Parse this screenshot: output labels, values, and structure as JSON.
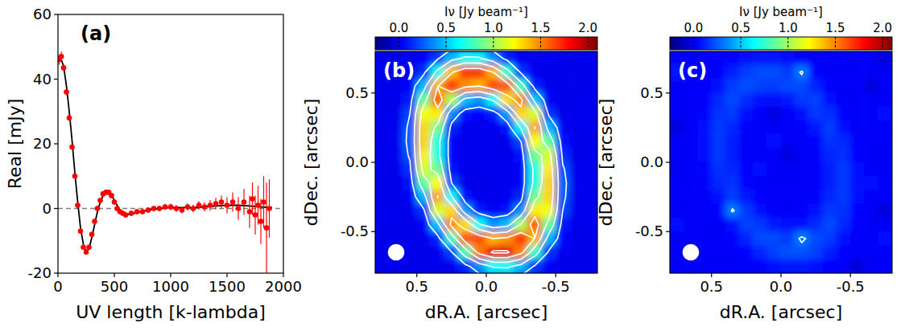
{
  "chart_data": [
    {
      "type": "line",
      "title": "(a)",
      "x_label": "UV length [k-lambda]",
      "y_label": "Real [mJy]",
      "xlim": [
        0,
        2000
      ],
      "ylim": [
        -20,
        60
      ],
      "xticks": [
        0,
        500,
        1000,
        1500,
        2000
      ],
      "yticks": [
        -20,
        0,
        20,
        40,
        60
      ],
      "series": [
        {
          "type": "line",
          "color": "#808080",
          "line_style": "dashed",
          "x": [
            0,
            2000
          ],
          "values": [
            0,
            0
          ]
        },
        {
          "type": "line",
          "color": "#000000",
          "line_style": "solid",
          "x": [
            0,
            25,
            50,
            75,
            100,
            125,
            150,
            175,
            200,
            225,
            250,
            275,
            300,
            325,
            350,
            375,
            400,
            425,
            450,
            475,
            500,
            525,
            550,
            600,
            650,
            700,
            800,
            900,
            1000,
            1100,
            1200,
            1300,
            1400,
            1500,
            1600,
            1700,
            1800,
            1900
          ],
          "values": [
            47,
            46.5,
            44,
            38,
            30,
            21,
            11,
            2,
            -6,
            -11,
            -13.5,
            -12.5,
            -9,
            -5,
            -1,
            2,
            4,
            5,
            5,
            4.2,
            2.5,
            1,
            -0.5,
            -1.8,
            -1.8,
            -1.2,
            -0.5,
            0,
            0.3,
            0.3,
            0.3,
            0.5,
            0.8,
            1,
            1,
            0.8,
            0.5,
            0.3
          ]
        },
        {
          "type": "scatter",
          "color": "#ff0000",
          "marker": "circle",
          "x": [
            10,
            30,
            50,
            75,
            100,
            125,
            150,
            175,
            200,
            225,
            250,
            275,
            300,
            325,
            350,
            375,
            400,
            425,
            450,
            475,
            500,
            525,
            550,
            575,
            600,
            650,
            700,
            750,
            800,
            850,
            900,
            950,
            1000,
            1050,
            1100,
            1150,
            1200,
            1250,
            1300,
            1350,
            1400,
            1450,
            1500,
            1550,
            1600,
            1650,
            1700,
            1725,
            1750,
            1775,
            1800,
            1825,
            1850,
            1875
          ],
          "values": [
            46,
            47,
            43.5,
            36,
            28,
            19,
            10,
            1,
            -7,
            -12,
            -13.5,
            -12,
            -8,
            -4,
            0,
            2.5,
            4.5,
            5,
            5,
            4,
            2,
            0,
            -1,
            -1.5,
            -2,
            -1.5,
            -1,
            -1,
            -0.5,
            0,
            0,
            0.5,
            0.5,
            0,
            -0.5,
            0.5,
            0,
            1,
            0.5,
            1,
            1.5,
            2,
            1,
            2,
            0,
            2,
            -1,
            3,
            -2,
            1,
            -4,
            2,
            -6,
            0
          ],
          "errors": [
            1.5,
            1.5,
            1,
            1,
            0.8,
            0.8,
            0.8,
            0.8,
            0.8,
            0.8,
            0.8,
            0.8,
            0.8,
            0.8,
            0.8,
            0.8,
            0.8,
            0.8,
            0.8,
            0.8,
            0.8,
            0.8,
            0.8,
            0.8,
            0.8,
            0.8,
            0.8,
            0.8,
            0.8,
            0.8,
            0.8,
            0.9,
            1,
            1,
            1,
            1.1,
            1.2,
            1.3,
            1.4,
            1.6,
            1.8,
            2,
            2.5,
            3,
            3.5,
            4,
            5,
            5,
            6,
            6,
            7,
            8,
            14,
            9
          ]
        }
      ]
    },
    {
      "type": "heatmap",
      "title": "(b)",
      "x_label": "dR.A. [arcsec]",
      "y_label": "dDec. [arcsec]",
      "color": "jet",
      "xlim": [
        0.8,
        -0.8
      ],
      "ylim": [
        -0.8,
        0.8
      ],
      "xticks": [
        0.5,
        {
          "value": 0,
          "label": "0.0"
        },
        -0.5
      ],
      "yticks": [
        -0.5,
        {
          "value": 0,
          "label": "0.0"
        },
        0.5
      ],
      "x": [
        0.85,
        0.75,
        0.65,
        0.55,
        0.45,
        0.35,
        0.25,
        0.15,
        0.05,
        -0.05,
        -0.15,
        -0.25,
        -0.35,
        -0.45,
        -0.55,
        -0.65,
        -0.75,
        -0.85
      ],
      "y": [
        0.85,
        0.75,
        0.65,
        0.55,
        0.45,
        0.35,
        0.25,
        0.15,
        0.05,
        -0.05,
        -0.15,
        -0.25,
        -0.35,
        -0.45,
        -0.55,
        -0.65,
        -0.75,
        -0.85
      ],
      "cells": [
        [
          0,
          0,
          0,
          0,
          0,
          0.02,
          0.07,
          0.11,
          0.09,
          0.04,
          0,
          0,
          0,
          0,
          0,
          0,
          0,
          0
        ],
        [
          0,
          0,
          0,
          0,
          0.03,
          0.17,
          0.47,
          0.67,
          0.64,
          0.38,
          0.12,
          0.01,
          0,
          0,
          0,
          0,
          0,
          0
        ],
        [
          0,
          0,
          0,
          0.01,
          0.15,
          0.69,
          1.37,
          1.68,
          1.68,
          1.4,
          0.73,
          0.16,
          0.01,
          0,
          0,
          0,
          0,
          0
        ],
        [
          0,
          0,
          0,
          0.05,
          0.46,
          1.39,
          1.69,
          1.47,
          1.4,
          1.63,
          1.6,
          0.77,
          0.11,
          0,
          0,
          0,
          0,
          0
        ],
        [
          0,
          0,
          0,
          0.1,
          0.87,
          1.59,
          1.02,
          0.48,
          0.38,
          0.63,
          1.3,
          1.49,
          0.5,
          0.03,
          0,
          0,
          0,
          0
        ],
        [
          0,
          0,
          0,
          0.2,
          1.19,
          1.26,
          0.37,
          0.07,
          0.03,
          0.09,
          0.4,
          1.31,
          1.13,
          0.16,
          0,
          0,
          0,
          0
        ],
        [
          0,
          0,
          0.01,
          0.25,
          1.31,
          0.9,
          0.12,
          0.01,
          0,
          0.01,
          0.06,
          0.62,
          1.42,
          0.46,
          0.02,
          0,
          0,
          0
        ],
        [
          0,
          0,
          0.01,
          0.27,
          1.32,
          0.7,
          0.04,
          0,
          0,
          0,
          0,
          0.2,
          1.21,
          0.85,
          0.07,
          0,
          0,
          0
        ],
        [
          0,
          0,
          0,
          0.23,
          1.26,
          0.69,
          0.04,
          0,
          0,
          0,
          0,
          0.07,
          0.88,
          1.13,
          0.15,
          0,
          0,
          0
        ],
        [
          0,
          0,
          0,
          0.15,
          1.13,
          0.88,
          0.07,
          0,
          0,
          0,
          0,
          0.04,
          0.69,
          1.26,
          0.23,
          0,
          0,
          0
        ],
        [
          0,
          0,
          0,
          0.07,
          0.85,
          1.21,
          0.2,
          0,
          0,
          0,
          0,
          0.04,
          0.7,
          1.32,
          0.27,
          0.01,
          0,
          0
        ],
        [
          0,
          0,
          0,
          0.02,
          0.46,
          1.42,
          0.62,
          0.06,
          0.01,
          0,
          0.01,
          0.12,
          0.9,
          1.31,
          0.25,
          0.01,
          0,
          0
        ],
        [
          0,
          0,
          0,
          0,
          0.16,
          1.13,
          1.31,
          0.4,
          0.09,
          0.03,
          0.07,
          0.37,
          1.26,
          1.19,
          0.2,
          0,
          0,
          0
        ],
        [
          0,
          0,
          0,
          0,
          0.03,
          0.5,
          1.49,
          1.3,
          0.63,
          0.38,
          0.48,
          1.02,
          1.59,
          0.87,
          0.1,
          0,
          0,
          0
        ],
        [
          0,
          0,
          0,
          0,
          0,
          0.11,
          0.77,
          1.6,
          1.63,
          1.4,
          1.47,
          1.69,
          1.39,
          0.46,
          0.05,
          0,
          0,
          0
        ],
        [
          0,
          0,
          0,
          0,
          0,
          0.01,
          0.18,
          0.8,
          1.52,
          1.85,
          1.85,
          1.5,
          0.75,
          0.16,
          0.01,
          0,
          0,
          0
        ],
        [
          0,
          0,
          0,
          0,
          0,
          0,
          0.01,
          0.12,
          0.38,
          0.64,
          0.67,
          0.47,
          0.17,
          0.03,
          0,
          0,
          0,
          0
        ],
        [
          0,
          0,
          0,
          0,
          0,
          0,
          0,
          0,
          0.04,
          0.09,
          0.11,
          0.07,
          0.02,
          0,
          0,
          0,
          0,
          0
        ]
      ],
      "contour_levels": [
        0.2,
        0.6,
        1.0,
        1.4,
        1.8
      ],
      "beam": 0.12,
      "colorbar": {
        "label": "Iν [Jy beam⁻¹]",
        "range": [
          -0.25,
          2.1
        ],
        "ticks": [
          {
            "value": 0,
            "label": "0.0"
          },
          0.5,
          {
            "value": 1,
            "label": "1.0"
          },
          1.5,
          {
            "value": 2,
            "label": "2.0"
          }
        ]
      }
    },
    {
      "type": "heatmap",
      "title": "(c)",
      "x_label": "dR.A. [arcsec]",
      "y_label": "dDec. [arcsec]",
      "color": "jet",
      "xlim": [
        0.8,
        -0.8
      ],
      "ylim": [
        -0.8,
        0.8
      ],
      "xticks": [
        0.5,
        {
          "value": 0,
          "label": "0.0"
        },
        -0.5
      ],
      "yticks": [
        -0.5,
        {
          "value": 0,
          "label": "0.0"
        },
        0.5
      ],
      "x": [
        0.85,
        0.75,
        0.65,
        0.55,
        0.45,
        0.35,
        0.25,
        0.15,
        0.05,
        -0.05,
        -0.15,
        -0.25,
        -0.35,
        -0.45,
        -0.55,
        -0.65,
        -0.75,
        -0.85
      ],
      "y": [
        0.85,
        0.75,
        0.65,
        0.55,
        0.45,
        0.35,
        0.25,
        0.15,
        0.05,
        -0.05,
        -0.15,
        -0.25,
        -0.35,
        -0.45,
        -0.55,
        -0.65,
        -0.75,
        -0.85
      ],
      "cells": [
        [
          0.03,
          0.03,
          -0.04,
          0.03,
          0.03,
          0.03,
          0.04,
          0.04,
          0.04,
          0.03,
          0.03,
          0.03,
          0.03,
          0.03,
          0.08,
          0.03,
          0.03,
          0.03
        ],
        [
          0.03,
          0.03,
          0.03,
          0.03,
          0.03,
          0.05,
          0.08,
          0.1,
          0.1,
          0.07,
          0.04,
          0.03,
          0.03,
          0.03,
          0.03,
          0.03,
          -0.05,
          0.03
        ],
        [
          0.03,
          0.09,
          0.03,
          0.03,
          0.05,
          0.11,
          0.18,
          0.22,
          0.22,
          0.18,
          0.32,
          0.05,
          0.03,
          0.03,
          0.03,
          0.03,
          0.03,
          0.03
        ],
        [
          0.03,
          0.03,
          0.03,
          0.04,
          0.08,
          0.18,
          0.22,
          0.19,
          0.18,
          0.21,
          0.21,
          0.12,
          0.04,
          0.03,
          0.03,
          -0.04,
          0.03,
          0.03
        ],
        [
          0.08,
          0.03,
          0.03,
          0.04,
          0.13,
          0.21,
          0.14,
          0.08,
          0.07,
          0.1,
          0.17,
          0.19,
          0.08,
          0.03,
          0.03,
          0.03,
          0.03,
          0.03
        ],
        [
          0.03,
          0.03,
          0.03,
          0.05,
          0.16,
          0.17,
          0.07,
          0.04,
          -0.03,
          0.04,
          0.07,
          0.17,
          0.15,
          0.05,
          0.03,
          0.03,
          0.08,
          0.03
        ],
        [
          0.03,
          -0.05,
          0.03,
          0.06,
          0.17,
          0.13,
          0.04,
          0.03,
          0.03,
          0.03,
          0.04,
          0.1,
          0.18,
          0.08,
          0.03,
          0.03,
          0.03,
          0.03
        ],
        [
          0.03,
          0.03,
          0.03,
          0.06,
          0.17,
          0.11,
          0.03,
          0.03,
          0.08,
          0.03,
          0.03,
          0.05,
          0.16,
          0.13,
          0.04,
          0.03,
          0.03,
          -0.04
        ],
        [
          0.03,
          0.03,
          0.03,
          0.06,
          0.17,
          0.11,
          0.03,
          0.03,
          0.03,
          -0.04,
          0.03,
          0.04,
          0.13,
          0.15,
          0.05,
          0.03,
          0.03,
          0.03
        ],
        [
          -0.04,
          0.03,
          0.03,
          0.05,
          0.15,
          0.13,
          0.04,
          0.07,
          0.03,
          0.03,
          0.03,
          0.03,
          0.11,
          0.17,
          0.06,
          0.03,
          0.03,
          0.03
        ],
        [
          0.03,
          0.03,
          0.03,
          0.04,
          0.13,
          0.16,
          0.05,
          0.03,
          0.03,
          0.03,
          0.03,
          0.03,
          0.11,
          0.17,
          0.06,
          0.08,
          0.03,
          0.03
        ],
        [
          0.03,
          0.03,
          0.03,
          0.03,
          0.08,
          0.18,
          0.1,
          0.04,
          0.03,
          0.03,
          0.03,
          0.04,
          0.13,
          0.17,
          0.06,
          0.03,
          0.03,
          0.03
        ],
        [
          0.03,
          0.03,
          0.03,
          0.03,
          0.05,
          0.32,
          0.17,
          0.07,
          0.04,
          0.03,
          0.04,
          0.07,
          0.17,
          0.16,
          0.05,
          0.03,
          -0.05,
          0.03
        ],
        [
          0.03,
          0.08,
          0.03,
          0.03,
          0.03,
          0.08,
          0.19,
          0.17,
          0.1,
          0.07,
          0.08,
          0.14,
          0.21,
          0.13,
          0.04,
          0.03,
          0.03,
          0.03
        ],
        [
          0.03,
          0.03,
          0.03,
          0.03,
          0.03,
          0.04,
          0.12,
          0.21,
          0.21,
          0.18,
          0.33,
          0.22,
          0.18,
          0.08,
          0.04,
          0.03,
          0.07,
          0.03
        ],
        [
          0.03,
          0.03,
          -0.04,
          0.03,
          0.03,
          0.03,
          0.05,
          0.12,
          0.19,
          0.23,
          0.23,
          0.19,
          0.11,
          0.05,
          0.03,
          0.03,
          0.03,
          0.03
        ],
        [
          0.03,
          0.03,
          0.03,
          0.03,
          0.03,
          0.03,
          0.03,
          0.04,
          0.07,
          0.1,
          0.1,
          0.08,
          0.05,
          0.03,
          -0.05,
          0.03,
          0.03,
          0.03
        ],
        [
          0.03,
          0.03,
          0.03,
          0.03,
          0.03,
          0.03,
          0.07,
          0.03,
          0.03,
          0.04,
          0.04,
          0.04,
          0.03,
          0.03,
          0.03,
          0.03,
          0.03,
          0.03
        ]
      ],
      "contour_levels": [
        0.3
      ],
      "beam": 0.12,
      "colorbar": {
        "label": "Iν [Jy beam⁻¹]",
        "range": [
          -0.25,
          2.1
        ],
        "ticks": [
          {
            "value": 0,
            "label": "0.0"
          },
          0.5,
          {
            "value": 1,
            "label": "1.0"
          },
          1.5,
          {
            "value": 2,
            "label": "2.0"
          }
        ]
      }
    }
  ]
}
